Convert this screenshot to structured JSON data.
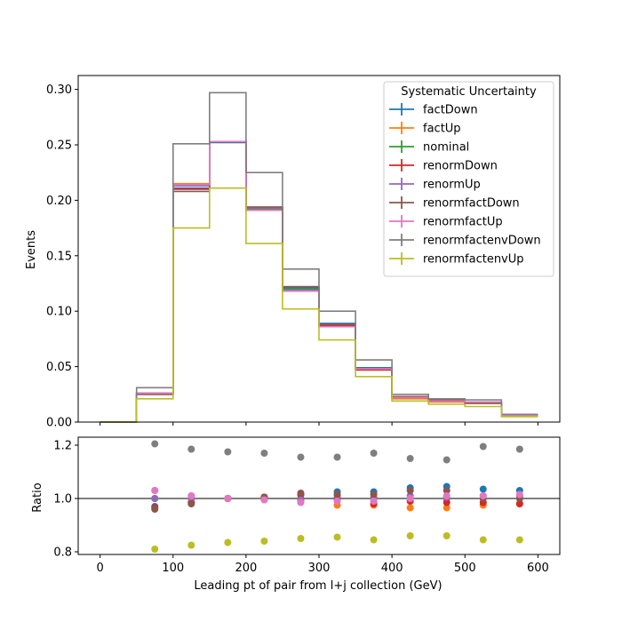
{
  "chart_data": [
    {
      "type": "line",
      "style": "step-histogram",
      "xlabel": "",
      "ylabel": "Events",
      "xlim": [
        -30,
        630
      ],
      "ylim": [
        0.0,
        0.3125
      ],
      "xticks": [
        0,
        100,
        200,
        300,
        400,
        500,
        600
      ],
      "yticks": [
        "0.00",
        "0.05",
        "0.10",
        "0.15",
        "0.20",
        "0.25",
        "0.30"
      ],
      "grid": false,
      "legend": {
        "title": "Systematic Uncertainty",
        "placement": "top-right"
      },
      "bin_edges": [
        0,
        50,
        100,
        150,
        200,
        250,
        300,
        350,
        400,
        450,
        500,
        550,
        600
      ],
      "series": [
        {
          "name": "factDown",
          "color": "#1f77b4",
          "values": [
            0.0,
            0.026,
            0.211,
            0.252,
            0.193,
            0.121,
            0.089,
            0.049,
            0.023,
            0.02,
            0.018,
            0.006
          ]
        },
        {
          "name": "factUp",
          "color": "#ff7f0e",
          "values": [
            0.0,
            0.026,
            0.215,
            0.253,
            0.191,
            0.119,
            0.086,
            0.047,
            0.021,
            0.018,
            0.017,
            0.005
          ]
        },
        {
          "name": "nominal",
          "color": "#2ca02c",
          "values": [
            0.0,
            0.026,
            0.213,
            0.253,
            0.192,
            0.12,
            0.087,
            0.048,
            0.022,
            0.019,
            0.017,
            0.006
          ]
        },
        {
          "name": "renormDown",
          "color": "#d62728",
          "values": [
            0.0,
            0.025,
            0.21,
            0.253,
            0.193,
            0.122,
            0.087,
            0.047,
            0.022,
            0.019,
            0.017,
            0.006
          ]
        },
        {
          "name": "renormUp",
          "color": "#9467bd",
          "values": [
            0.0,
            0.026,
            0.213,
            0.253,
            0.193,
            0.119,
            0.088,
            0.048,
            0.022,
            0.019,
            0.018,
            0.006
          ]
        },
        {
          "name": "renormfactDown",
          "color": "#8c564b",
          "values": [
            0.0,
            0.025,
            0.208,
            0.253,
            0.194,
            0.122,
            0.088,
            0.048,
            0.023,
            0.02,
            0.017,
            0.006
          ]
        },
        {
          "name": "renormfactUp",
          "color": "#e377c2",
          "values": [
            0.0,
            0.026,
            0.214,
            0.253,
            0.191,
            0.118,
            0.086,
            0.048,
            0.022,
            0.019,
            0.018,
            0.006
          ]
        },
        {
          "name": "renormfactenvDown",
          "color": "#7f7f7f",
          "values": [
            0.0,
            0.031,
            0.251,
            0.297,
            0.225,
            0.138,
            0.1,
            0.056,
            0.025,
            0.021,
            0.02,
            0.007
          ]
        },
        {
          "name": "renormfactenvUp",
          "color": "#bcbd22",
          "values": [
            0.0,
            0.021,
            0.175,
            0.211,
            0.161,
            0.102,
            0.074,
            0.041,
            0.019,
            0.016,
            0.014,
            0.005
          ]
        }
      ]
    },
    {
      "type": "scatter",
      "xlabel": "Leading pt of pair from l+j collection (GeV)",
      "ylabel": "Ratio",
      "xlim": [
        -30,
        630
      ],
      "ylim": [
        0.79,
        1.23
      ],
      "xticks": [
        0,
        100,
        200,
        300,
        400,
        500,
        600
      ],
      "yticks": [
        "0.8",
        "1.0",
        "1.2"
      ],
      "reference_line": 1.0,
      "grid": false,
      "x": [
        75,
        125,
        175,
        225,
        275,
        325,
        375,
        425,
        475,
        525,
        575
      ],
      "series": [
        {
          "name": "factDown",
          "color": "#1f77b4",
          "values": [
            0.97,
            0.985,
            1.0,
            1.005,
            1.015,
            1.025,
            1.025,
            1.04,
            1.045,
            1.035,
            1.03
          ]
        },
        {
          "name": "factUp",
          "color": "#ff7f0e",
          "values": [
            1.03,
            1.01,
            1.0,
            0.995,
            0.99,
            0.975,
            0.975,
            0.965,
            0.965,
            0.975,
            0.98
          ]
        },
        {
          "name": "nominal",
          "color": "#2ca02c",
          "values": [
            1.0,
            1.0,
            1.0,
            1.0,
            1.0,
            1.0,
            1.0,
            1.0,
            1.0,
            1.0,
            1.0
          ]
        },
        {
          "name": "renormDown",
          "color": "#d62728",
          "values": [
            0.965,
            0.985,
            1.0,
            1.005,
            1.015,
            1.0,
            0.98,
            0.99,
            0.985,
            0.985,
            0.98
          ]
        },
        {
          "name": "renormUp",
          "color": "#9467bd",
          "values": [
            1.0,
            1.0,
            1.0,
            1.005,
            0.995,
            1.01,
            1.005,
            1.01,
            1.005,
            1.01,
            1.01
          ]
        },
        {
          "name": "renormfactDown",
          "color": "#8c564b",
          "values": [
            0.96,
            0.98,
            1.0,
            1.005,
            1.02,
            1.015,
            1.015,
            1.03,
            1.03,
            1.0,
            1.0
          ]
        },
        {
          "name": "renormfactUp",
          "color": "#e377c2",
          "values": [
            1.03,
            1.01,
            1.0,
            0.995,
            0.985,
            0.99,
            0.99,
            1.0,
            1.01,
            1.01,
            1.015
          ]
        },
        {
          "name": "renormfactenvDown",
          "color": "#7f7f7f",
          "values": [
            1.205,
            1.185,
            1.175,
            1.17,
            1.155,
            1.155,
            1.17,
            1.15,
            1.145,
            1.195,
            1.185
          ]
        },
        {
          "name": "renormfactenvUp",
          "color": "#bcbd22",
          "values": [
            0.81,
            0.825,
            0.835,
            0.84,
            0.85,
            0.855,
            0.845,
            0.86,
            0.86,
            0.845,
            0.845
          ]
        }
      ]
    }
  ]
}
